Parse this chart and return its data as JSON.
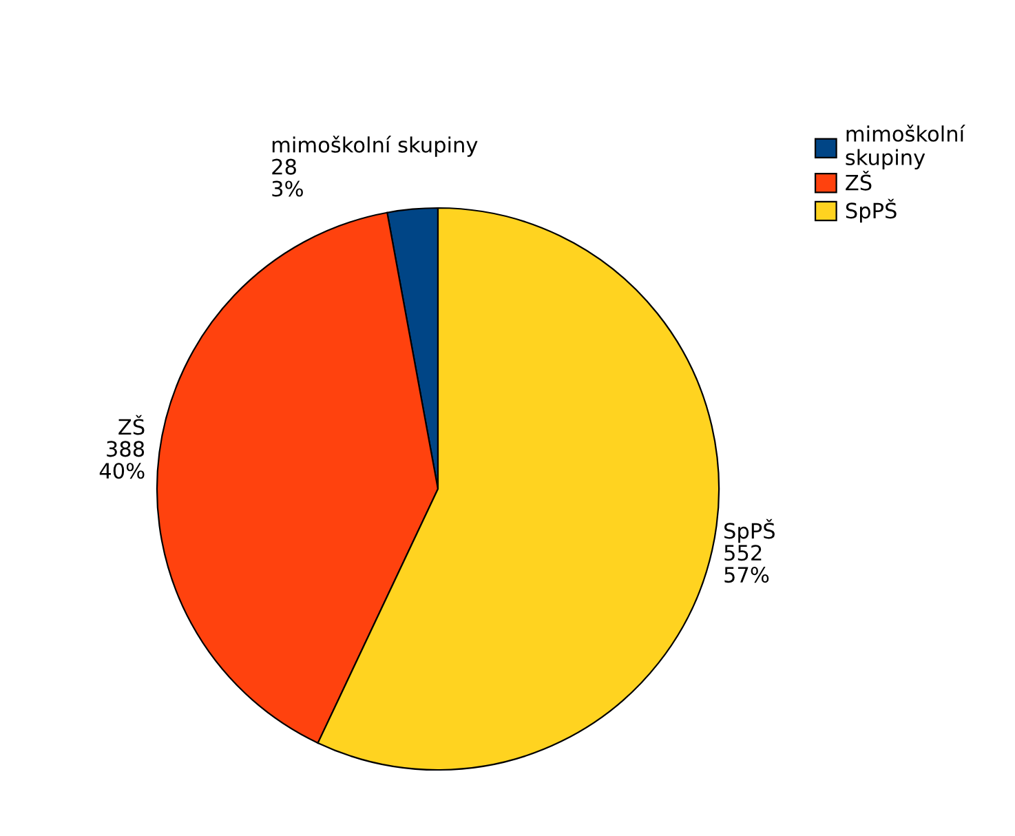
{
  "chart_data": {
    "type": "pie",
    "categories": [
      "mimoškolní skupiny",
      "ZŠ",
      "SpPŠ"
    ],
    "values": [
      28,
      388,
      552
    ],
    "value_labels": [
      "28\n3%",
      "388\n40%",
      "552\n57%"
    ],
    "colors": [
      "#004586",
      "#ff420e",
      "#ffd320"
    ],
    "legend": "top right"
  }
}
